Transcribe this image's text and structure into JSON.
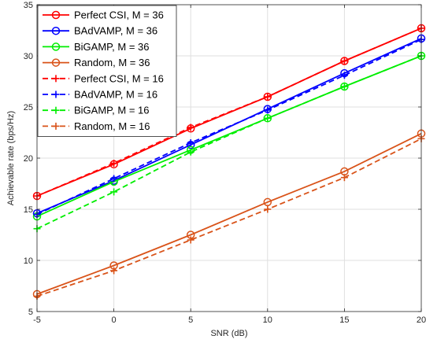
{
  "chart_data": {
    "type": "line",
    "title": "",
    "xlabel": "SNR (dB)",
    "ylabel": "Achievable rate (bps/Hz)",
    "xlim": [
      -5,
      20
    ],
    "ylim": [
      5,
      35
    ],
    "xticks": [
      -5,
      0,
      5,
      10,
      15,
      20
    ],
    "yticks": [
      5,
      10,
      15,
      20,
      25,
      30,
      35
    ],
    "grid": true,
    "legend_position": "top-left",
    "x": [
      -5,
      0,
      5,
      10,
      15,
      20
    ],
    "series": [
      {
        "name": "Perfect CSI, M = 36",
        "color": "#ff0000",
        "linestyle": "solid",
        "marker": "circle",
        "values": [
          16.3,
          19.4,
          22.9,
          26.0,
          29.5,
          32.7
        ]
      },
      {
        "name": "BAdVAMP, M = 36",
        "color": "#0000ff",
        "linestyle": "solid",
        "marker": "circle",
        "values": [
          14.6,
          17.8,
          21.3,
          24.8,
          28.3,
          31.7
        ]
      },
      {
        "name": "BiGAMP, M = 36",
        "color": "#00ee00",
        "linestyle": "solid",
        "marker": "circle",
        "values": [
          14.3,
          17.7,
          20.8,
          23.9,
          27.0,
          30.0
        ]
      },
      {
        "name": "Random, M = 36",
        "color": "#d95319",
        "linestyle": "solid",
        "marker": "circle",
        "values": [
          6.7,
          9.5,
          12.5,
          15.7,
          18.7,
          22.4
        ]
      },
      {
        "name": "Perfect CSI, M = 16",
        "color": "#ff0000",
        "linestyle": "dashed",
        "marker": "plus",
        "values": [
          16.3,
          19.5,
          23.0,
          26.0,
          29.5,
          32.7
        ]
      },
      {
        "name": "BAdVAMP, M = 16",
        "color": "#0000ff",
        "linestyle": "dashed",
        "marker": "plus",
        "values": [
          14.5,
          18.0,
          21.5,
          24.7,
          28.1,
          31.6
        ]
      },
      {
        "name": "BiGAMP, M = 16",
        "color": "#00ee00",
        "linestyle": "dashed",
        "marker": "plus",
        "values": [
          13.1,
          16.7,
          20.6,
          23.9,
          27.0,
          30.0
        ]
      },
      {
        "name": "Random, M = 16",
        "color": "#d95319",
        "linestyle": "dashed",
        "marker": "plus",
        "values": [
          6.5,
          9.0,
          12.0,
          15.0,
          18.1,
          21.9
        ]
      }
    ]
  }
}
